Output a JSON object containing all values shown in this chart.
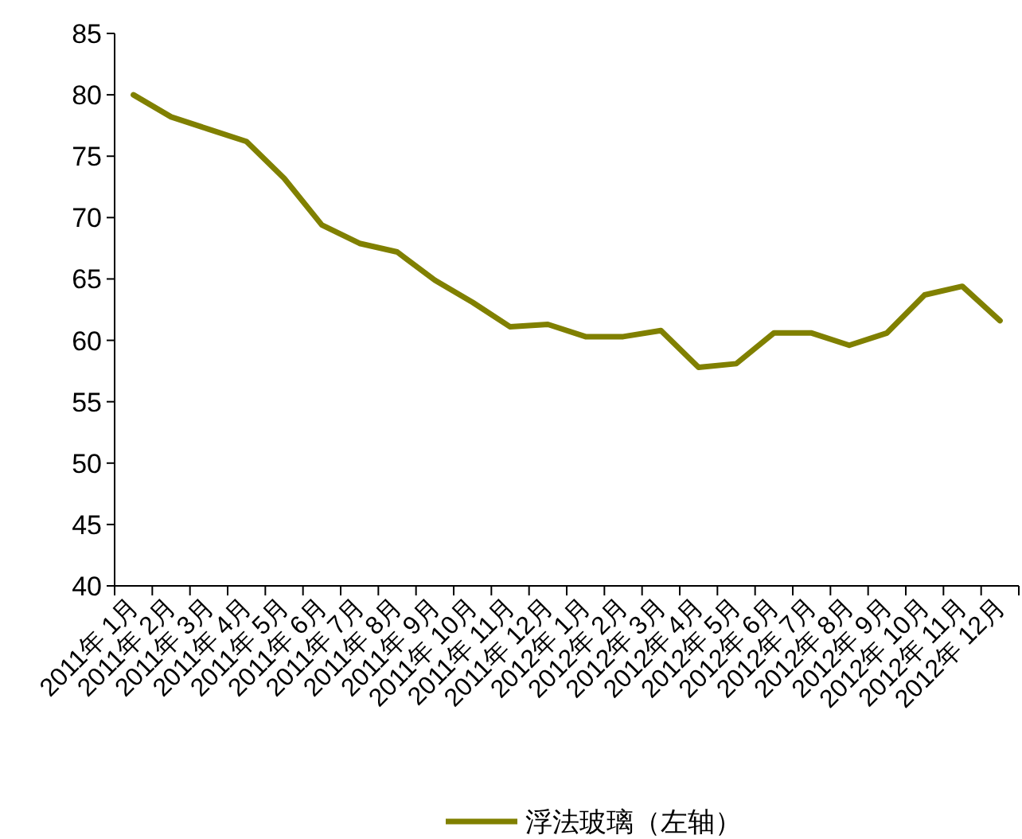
{
  "chart_data": {
    "type": "line",
    "categories": [
      "2011年 1月",
      "2011年 2月",
      "2011年 3月",
      "2011年 4月",
      "2011年 5月",
      "2011年 6月",
      "2011年 7月",
      "2011年 8月",
      "2011年 9月",
      "2011年 10月",
      "2011年 11月",
      "2011年 12月",
      "2012年 1月",
      "2012年 2月",
      "2012年 3月",
      "2012年 4月",
      "2012年 5月",
      "2012年 6月",
      "2012年 7月",
      "2012年 8月",
      "2012年 9月",
      "2012年 10月",
      "2012年 11月",
      "2012年 12月"
    ],
    "series": [
      {
        "name": "浮法玻璃（左轴）",
        "color": "#808000",
        "values": [
          80,
          78.2,
          77.2,
          76.2,
          73.2,
          69.4,
          67.9,
          67.2,
          64.9,
          63.1,
          61.1,
          61.3,
          60.3,
          60.3,
          60.8,
          57.8,
          58.1,
          60.6,
          60.6,
          59.6,
          60.6,
          63.7,
          64.4,
          61.6
        ]
      }
    ],
    "ylim": [
      40,
      85
    ],
    "yticks": [
      40,
      45,
      50,
      55,
      60,
      65,
      70,
      75,
      80,
      85
    ],
    "legend": "bottom",
    "grid": false
  }
}
